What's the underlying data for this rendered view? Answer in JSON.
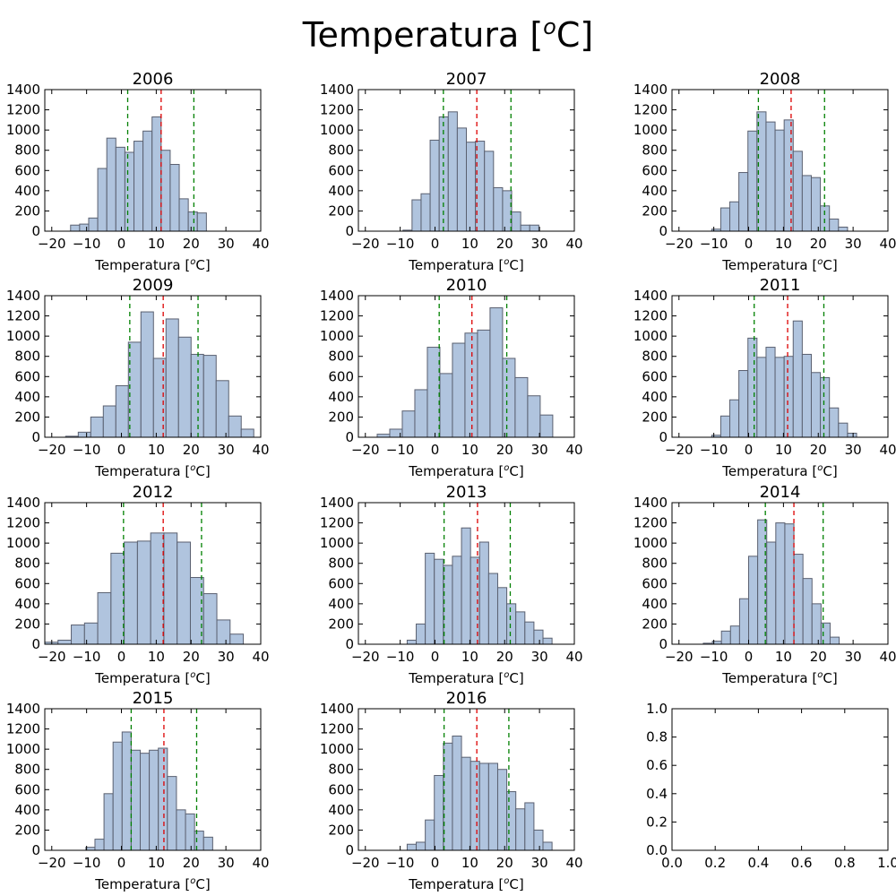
{
  "figure_title": "Temperatura [°C]",
  "figure_title_main": "Temperatura [",
  "figure_title_sup": "o",
  "figure_title_end": "C]",
  "colors": {
    "bar_fill": "#b0c4de",
    "bar_edge": "#5a6070",
    "mean_line": "#dd0000",
    "std_line": "#008000",
    "frame": "#000000"
  },
  "chart_data": [
    {
      "type": "bar",
      "title": "2006",
      "xlabel": "Temperatura [°C]",
      "xlim": [
        -22,
        40
      ],
      "ylim": [
        0,
        1400
      ],
      "xticks": [
        -20,
        -10,
        0,
        10,
        20,
        30,
        40
      ],
      "yticks": [
        0,
        200,
        400,
        600,
        800,
        1000,
        1200,
        1400
      ],
      "bin_edges": [
        -14.6,
        -12.0,
        -9.4,
        -6.8,
        -4.2,
        -1.6,
        1.0,
        3.6,
        6.2,
        8.8,
        11.4,
        14.0,
        16.6,
        19.2,
        21.8,
        24.4,
        27.0,
        29.6,
        32.2,
        34.8
      ],
      "values": [
        60,
        70,
        130,
        620,
        920,
        830,
        780,
        890,
        990,
        1130,
        800,
        660,
        320,
        190,
        180,
        0,
        0,
        0,
        0
      ],
      "mean": 11.4,
      "std_lines": [
        1.8,
        20.8
      ]
    },
    {
      "type": "bar",
      "title": "2007",
      "xlabel": "Temperatura [°C]",
      "xlim": [
        -22,
        40
      ],
      "ylim": [
        0,
        1400
      ],
      "xticks": [
        -20,
        -10,
        0,
        10,
        20,
        30,
        40
      ],
      "yticks": [
        0,
        200,
        400,
        600,
        800,
        1000,
        1200,
        1400
      ],
      "bin_edges": [
        -9.2,
        -6.6,
        -4.0,
        -1.4,
        1.2,
        3.8,
        6.4,
        9.0,
        11.6,
        14.2,
        16.8,
        19.4,
        22.0,
        24.6,
        27.2,
        29.8,
        32.4,
        35.0,
        37.6,
        40.2
      ],
      "values": [
        10,
        310,
        370,
        900,
        1130,
        1180,
        1020,
        880,
        890,
        790,
        430,
        400,
        190,
        60,
        60,
        0,
        0,
        0,
        0
      ],
      "mean": 12.0,
      "std_lines": [
        2.4,
        21.8
      ]
    },
    {
      "type": "bar",
      "title": "2008",
      "xlabel": "Temperatura [°C]",
      "xlim": [
        -22,
        40
      ],
      "ylim": [
        0,
        1400
      ],
      "xticks": [
        -20,
        -10,
        0,
        10,
        20,
        30,
        40
      ],
      "yticks": [
        0,
        200,
        400,
        600,
        800,
        1000,
        1200,
        1400
      ],
      "bin_edges": [
        -10.6,
        -8.0,
        -5.4,
        -2.8,
        -0.2,
        2.4,
        5.0,
        7.6,
        10.2,
        12.8,
        15.4,
        18.0,
        20.6,
        23.2,
        25.8,
        28.4,
        31.0,
        33.6,
        36.2,
        38.8
      ],
      "values": [
        20,
        230,
        290,
        580,
        990,
        1180,
        1080,
        1000,
        1100,
        790,
        550,
        530,
        250,
        120,
        40,
        0,
        0,
        0,
        0
      ],
      "mean": 12.2,
      "std_lines": [
        2.8,
        21.8
      ]
    },
    {
      "type": "bar",
      "title": "2009",
      "xlabel": "Temperatura [°C]",
      "xlim": [
        -22,
        40
      ],
      "ylim": [
        0,
        1400
      ],
      "xticks": [
        -20,
        -10,
        0,
        10,
        20,
        30,
        40
      ],
      "yticks": [
        0,
        200,
        400,
        600,
        800,
        1000,
        1200,
        1400
      ],
      "bin_edges": [
        -16.0,
        -12.4,
        -8.8,
        -5.2,
        -1.6,
        2.0,
        5.6,
        9.2,
        12.8,
        16.4,
        20.0,
        23.6,
        27.2,
        30.8,
        34.4,
        38.0
      ],
      "values": [
        10,
        50,
        200,
        310,
        510,
        940,
        1240,
        780,
        1170,
        990,
        820,
        810,
        560,
        210,
        80
      ],
      "mean": 12.0,
      "std_lines": [
        2.4,
        22.0
      ]
    },
    {
      "type": "bar",
      "title": "2010",
      "xlabel": "Temperatura [°C]",
      "xlim": [
        -22,
        40
      ],
      "ylim": [
        0,
        1400
      ],
      "xticks": [
        -20,
        -10,
        0,
        10,
        20,
        30,
        40
      ],
      "yticks": [
        0,
        200,
        400,
        600,
        800,
        1000,
        1200,
        1400
      ],
      "bin_edges": [
        -16.6,
        -13.0,
        -9.4,
        -5.8,
        -2.2,
        1.4,
        5.0,
        8.6,
        12.2,
        15.8,
        19.4,
        23.0,
        26.6,
        30.2,
        33.8
      ],
      "values": [
        30,
        80,
        260,
        470,
        890,
        630,
        930,
        1030,
        1060,
        1280,
        780,
        590,
        410,
        220,
        110
      ],
      "mean": 10.6,
      "std_lines": [
        1.2,
        20.6
      ]
    },
    {
      "type": "bar",
      "title": "2011",
      "xlabel": "Temperatura [°C]",
      "xlim": [
        -22,
        40
      ],
      "ylim": [
        0,
        1400
      ],
      "xticks": [
        -20,
        -10,
        0,
        10,
        20,
        30,
        40
      ],
      "yticks": [
        0,
        200,
        400,
        600,
        800,
        1000,
        1200,
        1400
      ],
      "bin_edges": [
        -10.6,
        -8.0,
        -5.4,
        -2.8,
        -0.2,
        2.4,
        5.0,
        7.6,
        10.2,
        12.8,
        15.4,
        18.0,
        20.6,
        23.2,
        25.8,
        28.4,
        31.0,
        33.6,
        36.2,
        38.8
      ],
      "values": [
        20,
        210,
        370,
        660,
        980,
        790,
        890,
        790,
        800,
        1150,
        820,
        640,
        590,
        290,
        140,
        40,
        0,
        0,
        0
      ],
      "mean": 11.2,
      "std_lines": [
        1.6,
        21.6
      ]
    },
    {
      "type": "bar",
      "title": "2012",
      "xlabel": "Temperatura [°C]",
      "xlim": [
        -22,
        40
      ],
      "ylim": [
        0,
        1400
      ],
      "xticks": [
        -20,
        -10,
        0,
        10,
        20,
        30,
        40
      ],
      "yticks": [
        0,
        200,
        400,
        600,
        800,
        1000,
        1200,
        1400
      ],
      "bin_edges": [
        -22.0,
        -18.2,
        -14.4,
        -10.6,
        -6.8,
        -3.0,
        0.8,
        4.6,
        8.4,
        12.2,
        16.0,
        19.8,
        23.6,
        27.4,
        31.2,
        35.0,
        38.8
      ],
      "values": [
        20,
        40,
        190,
        210,
        510,
        900,
        1010,
        1020,
        1100,
        1100,
        1010,
        660,
        500,
        240,
        100,
        0
      ],
      "mean": 12.0,
      "std_lines": [
        0.6,
        23.0
      ]
    },
    {
      "type": "bar",
      "title": "2013",
      "xlabel": "Temperatura [°C]",
      "xlim": [
        -22,
        40
      ],
      "ylim": [
        0,
        1400
      ],
      "xticks": [
        -20,
        -10,
        0,
        10,
        20,
        30,
        40
      ],
      "yticks": [
        0,
        200,
        400,
        600,
        800,
        1000,
        1200,
        1400
      ],
      "bin_edges": [
        -8.0,
        -5.4,
        -2.8,
        -0.2,
        2.4,
        5.0,
        7.6,
        10.2,
        12.8,
        15.4,
        18.0,
        20.6,
        23.2,
        25.8,
        28.4,
        31.0,
        33.6,
        36.2,
        38.8
      ],
      "values": [
        40,
        200,
        900,
        840,
        780,
        870,
        1150,
        860,
        1010,
        700,
        560,
        400,
        320,
        220,
        140,
        60,
        0,
        0
      ],
      "mean": 12.2,
      "std_lines": [
        2.6,
        21.6
      ]
    },
    {
      "type": "bar",
      "title": "2014",
      "xlabel": "Temperatura [°C]",
      "xlim": [
        -22,
        40
      ],
      "ylim": [
        0,
        1400
      ],
      "xticks": [
        -20,
        -10,
        0,
        10,
        20,
        30,
        40
      ],
      "yticks": [
        0,
        200,
        400,
        600,
        800,
        1000,
        1200,
        1400
      ],
      "bin_edges": [
        -13.0,
        -10.4,
        -7.8,
        -5.2,
        -2.6,
        0.0,
        2.6,
        5.2,
        7.8,
        10.4,
        13.0,
        15.6,
        18.2,
        20.8,
        23.4,
        26.0,
        28.6,
        31.2,
        33.8
      ],
      "values": [
        10,
        30,
        130,
        180,
        450,
        870,
        1230,
        1010,
        1200,
        1190,
        890,
        650,
        400,
        210,
        70,
        0,
        0,
        0
      ],
      "mean": 13.0,
      "std_lines": [
        4.8,
        21.4
      ]
    },
    {
      "type": "bar",
      "title": "2015",
      "xlabel": "Temperatura [°C]",
      "xlim": [
        -22,
        40
      ],
      "ylim": [
        0,
        1400
      ],
      "xticks": [
        -20,
        -10,
        0,
        10,
        20,
        30,
        40
      ],
      "yticks": [
        0,
        200,
        400,
        600,
        800,
        1000,
        1200,
        1400
      ],
      "bin_edges": [
        -10.2,
        -7.6,
        -5.0,
        -2.4,
        0.2,
        2.8,
        5.4,
        8.0,
        10.6,
        13.2,
        15.8,
        18.4,
        21.0,
        23.6,
        26.2,
        28.8,
        31.4,
        34.0,
        36.6
      ],
      "values": [
        30,
        110,
        560,
        1070,
        1170,
        990,
        960,
        990,
        1010,
        730,
        400,
        360,
        190,
        130,
        0,
        0,
        0,
        0
      ],
      "mean": 12.2,
      "std_lines": [
        2.8,
        21.6
      ]
    },
    {
      "type": "bar",
      "title": "2016",
      "xlabel": "Temperatura [°C]",
      "xlim": [
        -22,
        40
      ],
      "ylim": [
        0,
        1400
      ],
      "xticks": [
        -20,
        -10,
        0,
        10,
        20,
        30,
        40
      ],
      "yticks": [
        0,
        200,
        400,
        600,
        800,
        1000,
        1200,
        1400
      ],
      "bin_edges": [
        -8.0,
        -5.4,
        -2.8,
        -0.2,
        2.4,
        5.0,
        7.6,
        10.2,
        12.8,
        15.4,
        18.0,
        20.6,
        23.2,
        25.8,
        28.4,
        31.0,
        33.6,
        36.2
      ],
      "values": [
        60,
        80,
        300,
        740,
        1060,
        1130,
        920,
        880,
        860,
        860,
        800,
        580,
        410,
        470,
        200,
        80,
        0
      ],
      "mean": 12.0,
      "std_lines": [
        2.6,
        21.2
      ]
    },
    {
      "type": "bar",
      "title": "",
      "xlabel": "",
      "xlim": [
        0,
        1
      ],
      "ylim": [
        0,
        1
      ],
      "xticks": [
        0.0,
        0.2,
        0.4,
        0.6,
        0.8,
        1.0
      ],
      "yticks": [
        0.0,
        0.2,
        0.4,
        0.6,
        0.8,
        1.0
      ],
      "xtick_labels": [
        "0.0",
        "0.2",
        "0.4",
        "0.6",
        "0.8",
        "1.0"
      ],
      "ytick_labels": [
        "0.0",
        "0.2",
        "0.4",
        "0.6",
        "0.8",
        "1.0"
      ],
      "bin_edges": [],
      "values": [],
      "empty": true
    }
  ]
}
